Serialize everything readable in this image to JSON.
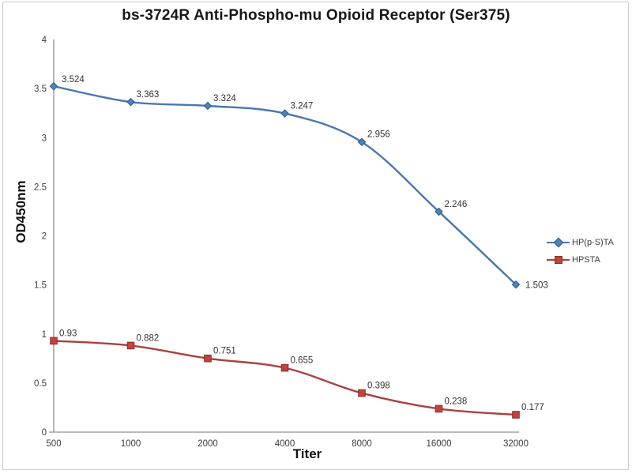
{
  "chart_data": {
    "type": "line",
    "title": "bs-3724R Anti-Phospho-mu Opioid Receptor (Ser375)",
    "xlabel": "Titer",
    "ylabel": "OD450nm",
    "categories": [
      "500",
      "1000",
      "2000",
      "4000",
      "8000",
      "16000",
      "32000"
    ],
    "y_ticks": [
      "0",
      "0.5",
      "1",
      "1.5",
      "2",
      "2.5",
      "3",
      "3.5",
      "4"
    ],
    "ylim": [
      0,
      4
    ],
    "grid": false,
    "legend_position": "right",
    "colors": {
      "axis": "#909090",
      "tick_text": "#3d3d3d",
      "label_text": "#333333",
      "title_text": "#171717",
      "border": "#c7ced4"
    },
    "series": [
      {
        "name": "HP(p-S)TA",
        "marker": "diamond",
        "line_color": "#4878B0",
        "marker_color": "#4F81BD",
        "marker_edge": "#2E5B8F",
        "values": [
          3.524,
          3.363,
          3.324,
          3.247,
          2.956,
          2.246,
          1.503
        ],
        "labels": [
          "3.524",
          "3.363",
          "3.324",
          "3.247",
          "2.956",
          "2.246",
          "1.503"
        ]
      },
      {
        "name": "HPSTA",
        "marker": "square",
        "line_color": "#A8423F",
        "marker_color": "#C2423C",
        "marker_edge": "#8A2F2C",
        "values": [
          0.93,
          0.882,
          0.751,
          0.655,
          0.398,
          0.238,
          0.177
        ],
        "labels": [
          "0.93",
          "0.882",
          "0.751",
          "0.655",
          "0.398",
          "0.238",
          "0.177"
        ]
      }
    ]
  }
}
